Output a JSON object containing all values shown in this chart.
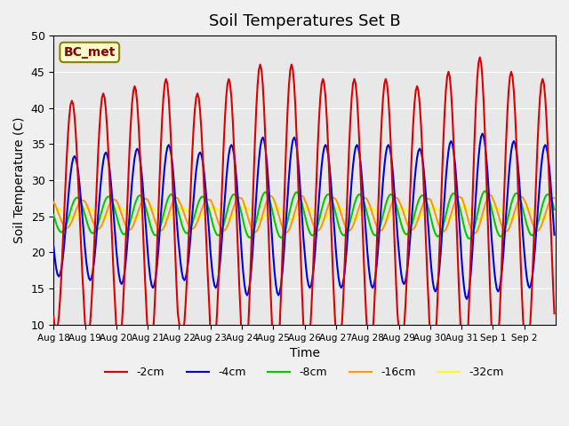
{
  "title": "Soil Temperatures Set B",
  "xlabel": "Time",
  "ylabel": "Soil Temperature (C)",
  "ylim": [
    10,
    50
  ],
  "background_color": "#e8e8e8",
  "annotation": "BC_met",
  "lines": {
    "-2cm": {
      "color": "#dd0000",
      "lw": 1.5
    },
    "-4cm": {
      "color": "#0000dd",
      "lw": 1.5
    },
    "-8cm": {
      "color": "#00cc00",
      "lw": 1.5
    },
    "-16cm": {
      "color": "#ff9900",
      "lw": 1.5
    },
    "-32cm": {
      "color": "#ffff00",
      "lw": 1.5
    }
  },
  "xtick_labels": [
    "Aug 18",
    "Aug 19",
    "Aug 20",
    "Aug 21",
    "Aug 22",
    "Aug 23",
    "Aug 24",
    "Aug 25",
    "Aug 26",
    "Aug 27",
    "Aug 28",
    "Aug 29",
    "Aug 30",
    "Aug 31",
    "Sep 1",
    "Sep 2"
  ],
  "ytick_vals": [
    10,
    15,
    20,
    25,
    30,
    35,
    40,
    45,
    50
  ],
  "day_amps_2cm": [
    16,
    17,
    18,
    19,
    17,
    19,
    21,
    21,
    19,
    19,
    19,
    18,
    20,
    22,
    20,
    19
  ]
}
